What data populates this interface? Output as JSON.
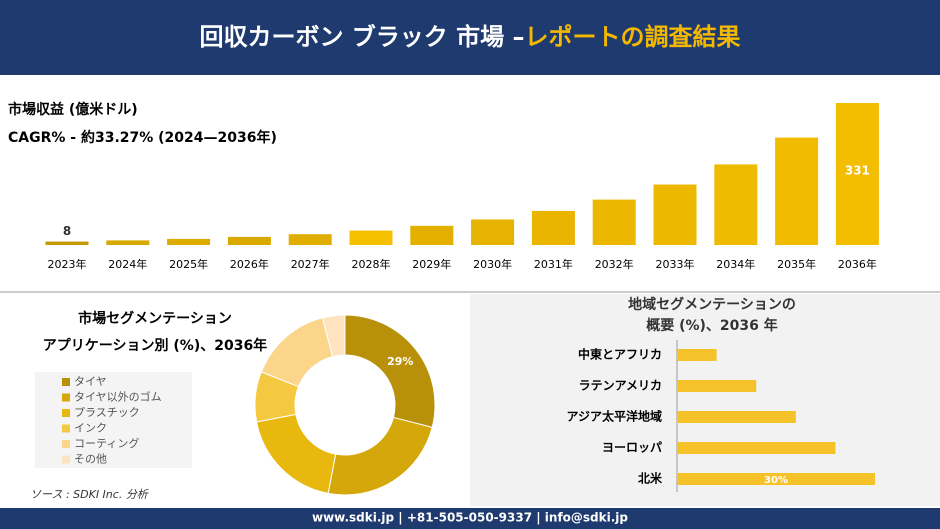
{
  "header": {
    "title_main": "回収カーボン ブラック 市場 –",
    "title_accent": "レポートの調査結果"
  },
  "footer": {
    "contact": "www.sdki.jp | +81-505-050-9337 | info@sdki.jp",
    "source": "ソース : SDKI Inc. 分析"
  },
  "chart_data": [
    {
      "type": "bar",
      "title": "市場収益 (億米ドル)",
      "subtitle": "CAGR% - 約33.27% (2024—2036年)",
      "categories": [
        "2023年",
        "2024年",
        "2025年",
        "2026年",
        "2027年",
        "2028年",
        "2029年",
        "2030年",
        "2031年",
        "2032年",
        "2033年",
        "2034年",
        "2035年",
        "2036年"
      ],
      "values": [
        8,
        10.7,
        14.2,
        18.9,
        25.2,
        33.6,
        44.7,
        59.6,
        79.4,
        105.8,
        141,
        187.9,
        250.4,
        331
      ],
      "value_labels": [
        "8",
        null,
        null,
        null,
        null,
        null,
        null,
        null,
        null,
        null,
        null,
        null,
        null,
        "331"
      ],
      "colors": [
        "#c49a00",
        "#d6a800",
        "#dcab00",
        "#d9a900",
        "#dfae00",
        "#f5c000",
        "#e3b000",
        "#e6b300",
        "#e9b500",
        "#ebb700",
        "#edb900",
        "#efbb00",
        "#f1bc00",
        "#f4be00"
      ]
    },
    {
      "type": "pie",
      "title": "市場セグメンテーション",
      "subtitle": "アプリケーション別 (%)、2036年",
      "categories": [
        "タイヤ",
        "タイヤ以外のゴム",
        "プラスチック",
        "インク",
        "コーティング",
        "その他"
      ],
      "values": [
        29,
        24,
        19,
        9,
        15,
        4
      ],
      "value_labels": [
        "29%",
        null,
        null,
        null,
        null,
        null
      ],
      "colors": [
        "#b8900a",
        "#d4a80a",
        "#e8b80f",
        "#f5c842",
        "#fad58a",
        "#fde3c0"
      ]
    },
    {
      "type": "hbar",
      "title": "地域セグメンテーションの",
      "subtitle": "概要 (%)、2036 年",
      "categories": [
        "中東とアフリカ",
        "ラテンアメリカ",
        "アジア太平洋地域",
        "ヨーロッパ",
        "北米"
      ],
      "values": [
        6,
        12,
        18,
        24,
        30
      ],
      "value_labels": [
        null,
        null,
        null,
        null,
        "30%"
      ],
      "color": "#f5c22a"
    }
  ]
}
